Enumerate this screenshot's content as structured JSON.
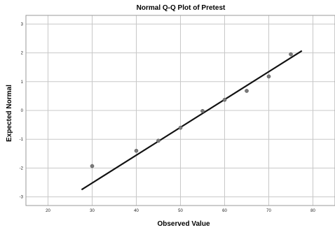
{
  "chart_data": {
    "type": "scatter",
    "title": "Normal Q-Q Plot of Pretest",
    "xlabel": "Observed Value",
    "ylabel": "Expected Normal",
    "xlim": [
      15,
      85
    ],
    "ylim": [
      -3.3,
      3.3
    ],
    "xticks": [
      20,
      30,
      40,
      50,
      60,
      70,
      80
    ],
    "yticks": [
      3,
      2,
      1,
      0,
      -1,
      -2,
      -3
    ],
    "grid": true,
    "points": [
      {
        "x": 30,
        "y": -1.93
      },
      {
        "x": 40,
        "y": -1.4
      },
      {
        "x": 45,
        "y": -1.05
      },
      {
        "x": 50,
        "y": -0.6
      },
      {
        "x": 55,
        "y": -0.02
      },
      {
        "x": 60,
        "y": 0.37
      },
      {
        "x": 65,
        "y": 0.68
      },
      {
        "x": 70,
        "y": 1.18
      },
      {
        "x": 75,
        "y": 1.95
      }
    ],
    "reference_line": {
      "x": [
        27.6,
        77.5
      ],
      "y": [
        -2.75,
        2.07
      ]
    }
  }
}
